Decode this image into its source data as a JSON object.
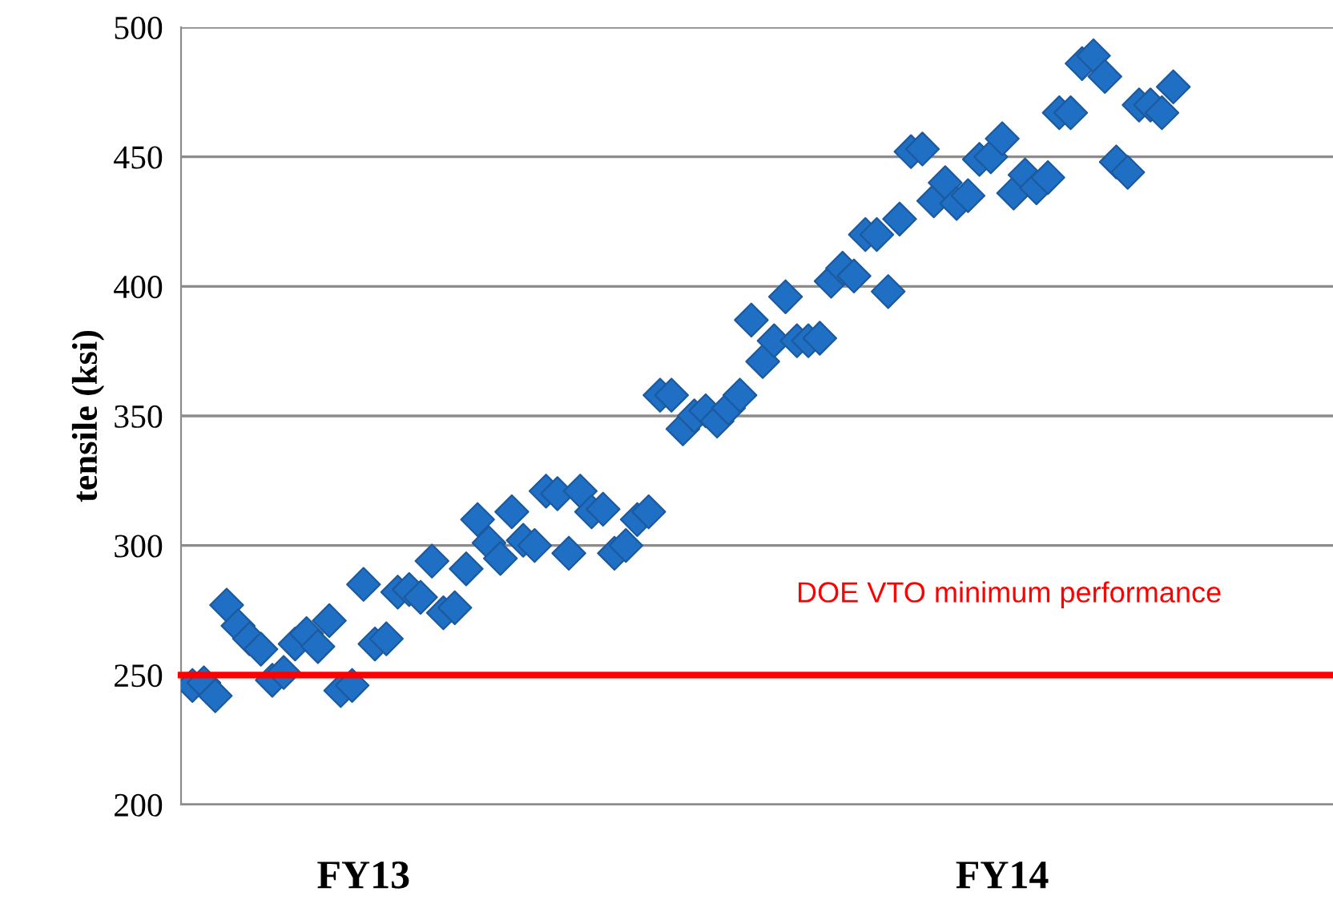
{
  "chart_data": {
    "type": "scatter",
    "ylabel": "tensile (ksi)",
    "categories": [
      null,
      null,
      null,
      null,
      null,
      null,
      null,
      null,
      null,
      null,
      null,
      null,
      null,
      null,
      null,
      "FY13",
      null,
      null,
      null,
      null,
      null,
      null,
      null,
      null,
      null,
      null,
      null,
      null,
      null,
      null,
      null,
      null,
      null,
      null,
      null,
      null,
      null,
      null,
      null,
      null,
      null,
      null,
      null,
      null,
      null,
      null,
      null,
      null,
      null,
      null,
      null,
      null,
      null,
      null,
      null,
      null,
      null,
      null,
      null,
      null,
      null,
      null,
      null,
      null,
      null,
      null,
      null,
      null,
      null,
      null,
      null,
      "FY14",
      null,
      null,
      null,
      null,
      null,
      null,
      null,
      null,
      null,
      null,
      null,
      null,
      null,
      null,
      null
    ],
    "series": [
      {
        "color": "#1f6fc5",
        "values": [
          246,
          247,
          242,
          277,
          269,
          264,
          260,
          248,
          251,
          262,
          266,
          261,
          271,
          244,
          246,
          285,
          262,
          264,
          282,
          283,
          280,
          294,
          274,
          276,
          291,
          310,
          301,
          295,
          313,
          302,
          300,
          321,
          320,
          297,
          321,
          313,
          314,
          297,
          300,
          310,
          313,
          358,
          358,
          345,
          350,
          352,
          348,
          353,
          358,
          387,
          371,
          379,
          396,
          379,
          379,
          380,
          402,
          407,
          404,
          420,
          420,
          398,
          426,
          452,
          453,
          433,
          440,
          432,
          435,
          449,
          450,
          457,
          436,
          443,
          438,
          442,
          467,
          467,
          486,
          489,
          481,
          448,
          444,
          470,
          470,
          467,
          477
        ]
      }
    ],
    "marker": "diamond",
    "ylim": [
      200,
      500
    ],
    "yticks": [
      200,
      250,
      300,
      350,
      400,
      450,
      500
    ],
    "grid": "y",
    "ref_lines": [
      {
        "axis": "y",
        "value": 250,
        "label": "DOE VTO minimum performance",
        "color": "#ff0000"
      }
    ]
  }
}
